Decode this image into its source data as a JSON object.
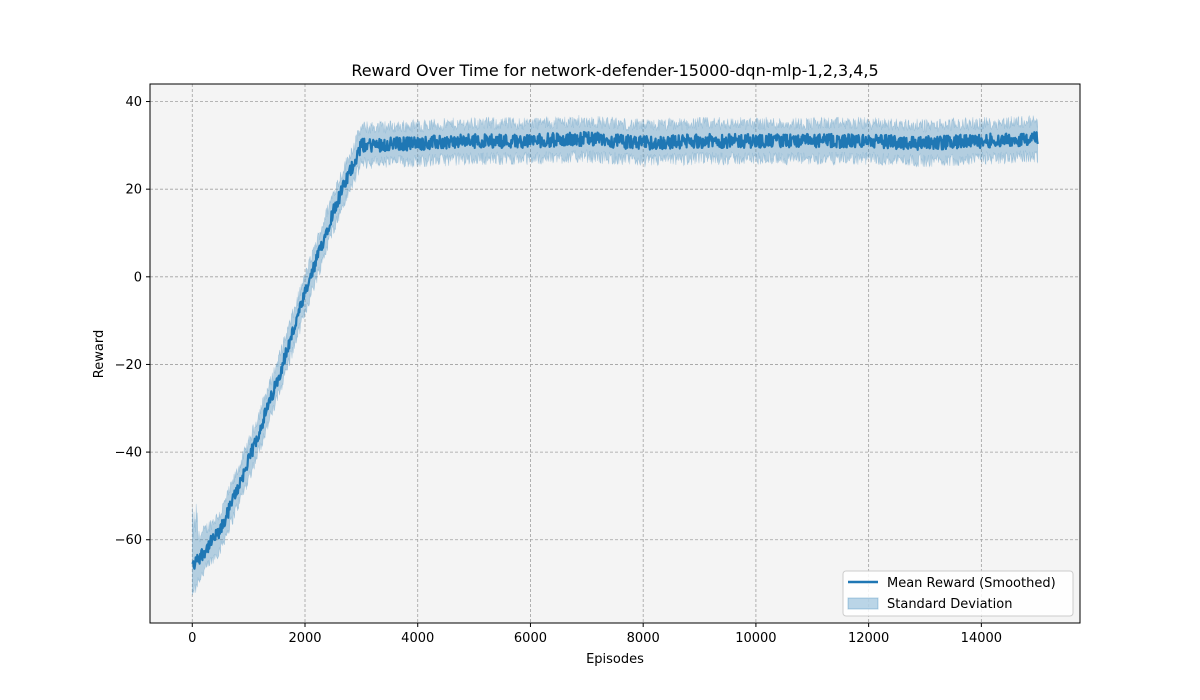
{
  "chart_data": {
    "type": "line",
    "title": "Reward Over Time for network-defender-15000-dqn-mlp-1,2,3,4,5",
    "xlabel": "Episodes",
    "ylabel": "Reward",
    "xlim": [
      -750,
      15750
    ],
    "ylim": [
      -79,
      44
    ],
    "xticks": [
      0,
      2000,
      4000,
      6000,
      8000,
      10000,
      12000,
      14000
    ],
    "yticks": [
      -60,
      -40,
      -20,
      0,
      20,
      40
    ],
    "xtick_labels": [
      "0",
      "2000",
      "4000",
      "6000",
      "8000",
      "10000",
      "12000",
      "14000"
    ],
    "ytick_labels": [
      "−60",
      "−40",
      "−20",
      "0",
      "20",
      "40"
    ],
    "grid": true,
    "legend_position": "bottom-right",
    "series": [
      {
        "name": "Mean Reward (Smoothed)",
        "kind": "line",
        "color": "#1f77b4",
        "x": [
          0,
          500,
          1000,
          1500,
          2000,
          2500,
          3000,
          4000,
          5000,
          6000,
          7000,
          8000,
          9000,
          10000,
          11000,
          12000,
          13000,
          14000,
          15000
        ],
        "y": [
          -66,
          -58,
          -42,
          -24,
          -4,
          15,
          30,
          30.5,
          31,
          31,
          31.5,
          30.5,
          31,
          31,
          31,
          31,
          30.5,
          31,
          31.5
        ]
      },
      {
        "name": "Standard Deviation",
        "kind": "band",
        "color": "#1f77b4",
        "x": [
          0,
          500,
          1000,
          1500,
          2000,
          2500,
          3000,
          4000,
          5000,
          6000,
          7000,
          8000,
          9000,
          10000,
          11000,
          12000,
          13000,
          14000,
          15000
        ],
        "y_lower": [
          -71,
          -62,
          -46,
          -28,
          -8,
          11,
          26,
          26.5,
          27,
          27,
          27.5,
          26.5,
          27,
          27,
          27,
          27,
          26.5,
          27,
          27.5
        ],
        "y_upper": [
          -61,
          -54,
          -38,
          -20,
          0,
          19,
          34,
          34.5,
          35,
          35,
          35.5,
          34.5,
          35,
          35,
          35,
          35,
          34.5,
          35,
          35.5
        ]
      }
    ]
  }
}
